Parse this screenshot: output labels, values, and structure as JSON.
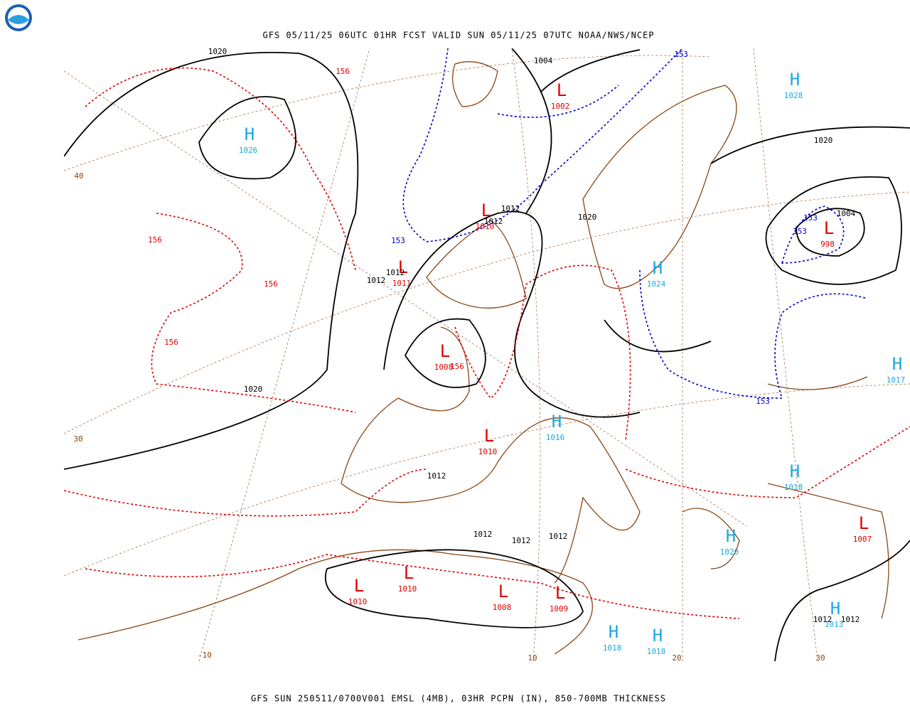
{
  "header": {
    "title": "GFS 05/11/25 06UTC 01HR FCST VALID SUN 05/11/25 07UTC NOAA/NWS/NCEP"
  },
  "footer": {
    "caption": "GFS SUN 250511/0700V001 EMSL (4MB), 03HR PCPN (IN), 850-700MB THICKNESS"
  },
  "centers": [
    {
      "symbol": "H",
      "value": "1026"
    },
    {
      "symbol": "H",
      "value": "1028"
    },
    {
      "symbol": "L",
      "value": "1002"
    },
    {
      "symbol": "L",
      "value": "1010"
    },
    {
      "symbol": "L",
      "value": "1011"
    },
    {
      "symbol": "L",
      "value": "1008"
    },
    {
      "symbol": "L",
      "value": "1010"
    },
    {
      "symbol": "L",
      "value": "1010"
    },
    {
      "symbol": "L",
      "value": "1010"
    },
    {
      "symbol": "L",
      "value": "1008"
    },
    {
      "symbol": "L",
      "value": "1009"
    },
    {
      "symbol": "L",
      "value": "998"
    },
    {
      "symbol": "L",
      "value": "1007"
    },
    {
      "symbol": "H",
      "value": "1016"
    },
    {
      "symbol": "H",
      "value": "1017"
    },
    {
      "symbol": "H",
      "value": "1018"
    },
    {
      "symbol": "H",
      "value": "1020"
    },
    {
      "symbol": "H",
      "value": "1013"
    },
    {
      "symbol": "H",
      "value": "1018"
    },
    {
      "symbol": "H",
      "value": "1018"
    },
    {
      "symbol": "H",
      "value": "1024"
    }
  ],
  "isobar_labels": [
    "1020",
    "1004",
    "1012",
    "1012",
    "1012",
    "1012",
    "1020",
    "1012",
    "1012",
    "1012",
    "1012",
    "1020",
    "1020",
    "1004",
    "1012",
    "1012"
  ],
  "thickness_labels_156": [
    "156",
    "156",
    "156",
    "156",
    "156"
  ],
  "thickness_labels_153": [
    "153",
    "153",
    "153",
    "153",
    "153"
  ],
  "graticule_labels": [
    "40",
    "30",
    "-10",
    "10",
    "20",
    "30"
  ]
}
